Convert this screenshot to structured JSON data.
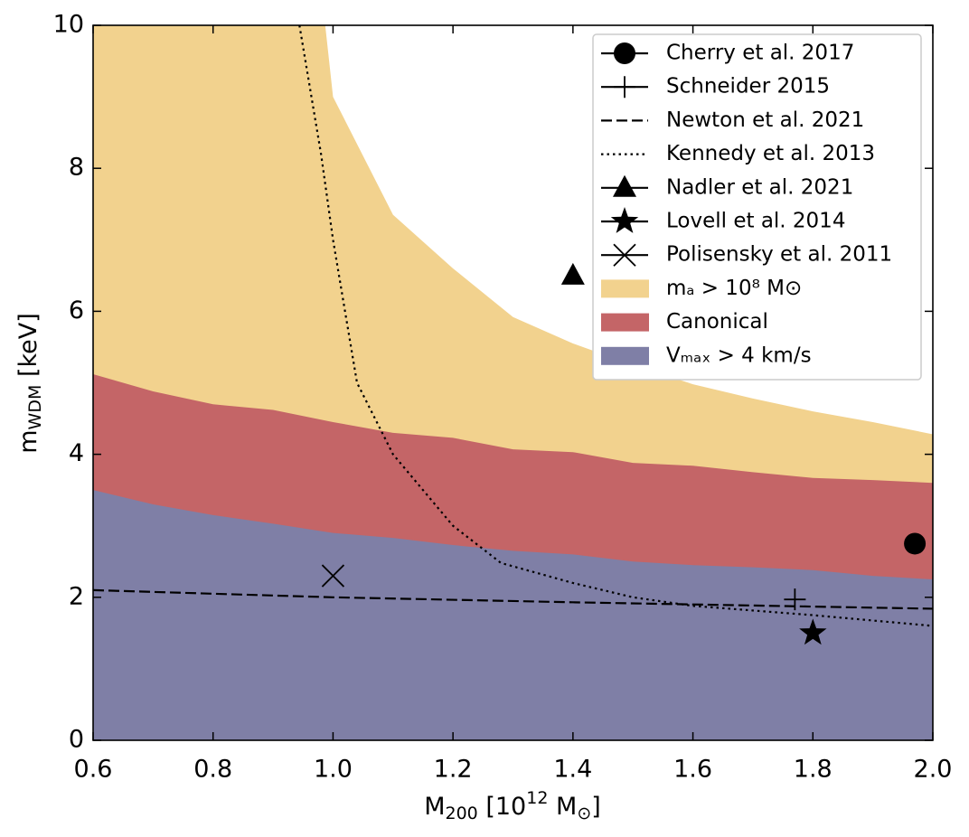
{
  "chart_data": {
    "type": "line",
    "xlabel": [
      "M",
      "200",
      " [10",
      "12",
      " M",
      "⊙",
      "]"
    ],
    "ylabel": [
      "m",
      "WDM",
      " [keV]"
    ],
    "xlim": [
      0.6,
      2.0
    ],
    "ylim": [
      0,
      10
    ],
    "xticks": [
      0.6,
      0.8,
      {
        "value": 1.0,
        "label": "1.0"
      },
      1.2,
      1.4,
      1.6,
      1.8,
      {
        "value": 2.0,
        "label": "2.0"
      }
    ],
    "yticks": [
      0,
      2,
      4,
      6,
      8,
      10
    ],
    "grid": false,
    "legend": "upper right",
    "series": [
      {
        "name": "Cherry et al. 2017",
        "color": "#000000",
        "style": "marker",
        "marker": "circle",
        "x": [
          1.97
        ],
        "values": [
          2.75
        ]
      },
      {
        "name": "Schneider 2015",
        "color": "#000000",
        "style": "marker",
        "marker": "plus",
        "x": [
          1.77
        ],
        "values": [
          1.97
        ]
      },
      {
        "name": "Newton et al. 2021",
        "color": "#000000",
        "style": "dashed",
        "x": [
          0.6,
          1.0,
          1.4,
          1.8,
          2.0
        ],
        "values": [
          2.1,
          2.0,
          1.93,
          1.87,
          1.84
        ]
      },
      {
        "name": "Kennedy et al. 2013",
        "color": "#000000",
        "style": "dotted",
        "x": [
          0.944,
          0.98,
          1.0,
          1.04,
          1.1,
          1.2,
          1.28,
          1.4,
          1.5,
          1.6,
          1.8,
          2.0
        ],
        "values": [
          10,
          8.2,
          7.0,
          5.0,
          4.0,
          3.0,
          2.48,
          2.2,
          2.0,
          1.88,
          1.75,
          1.6
        ]
      },
      {
        "name": "Nadler et al. 2021",
        "color": "#000000",
        "style": "marker",
        "marker": "triangle",
        "x": [
          1.4
        ],
        "values": [
          6.5
        ]
      },
      {
        "name": "Lovell et al. 2014",
        "color": "#000000",
        "style": "marker",
        "marker": "star",
        "x": [
          1.8
        ],
        "values": [
          1.5
        ]
      },
      {
        "name": "Polisensky et al. 2011",
        "color": "#000000",
        "style": "marker",
        "marker": "x",
        "x": [
          1.0
        ],
        "values": [
          2.3
        ]
      },
      {
        "name": "mₐ > 10⁸ M⊙",
        "color": "#f2d28e",
        "style": "fill",
        "x": [
          0.6,
          0.987,
          1.0,
          1.1,
          1.2,
          1.3,
          1.4,
          1.5,
          1.6,
          1.7,
          1.8,
          1.9,
          2.0
        ],
        "values": [
          10,
          10,
          9.0,
          7.35,
          6.6,
          5.92,
          5.55,
          5.25,
          4.98,
          4.78,
          4.6,
          4.45,
          4.28
        ]
      },
      {
        "name": "Canonical",
        "color": "#c46567",
        "style": "fill",
        "x": [
          0.6,
          0.7,
          0.8,
          0.9,
          1.0,
          1.1,
          1.2,
          1.3,
          1.4,
          1.5,
          1.6,
          1.7,
          1.8,
          1.9,
          2.0
        ],
        "values": [
          5.12,
          4.88,
          4.7,
          4.62,
          4.45,
          4.3,
          4.23,
          4.07,
          4.03,
          3.88,
          3.84,
          3.75,
          3.67,
          3.64,
          3.6
        ]
      },
      {
        "name": "Vₘₐₓ > 4 km/s",
        "color": "#7f7fa6",
        "style": "fill",
        "x": [
          0.6,
          0.7,
          0.8,
          0.9,
          1.0,
          1.1,
          1.2,
          1.3,
          1.4,
          1.5,
          1.6,
          1.7,
          1.8,
          1.9,
          2.0
        ],
        "values": [
          3.5,
          3.3,
          3.15,
          3.03,
          2.9,
          2.83,
          2.73,
          2.65,
          2.6,
          2.5,
          2.45,
          2.42,
          2.38,
          2.3,
          2.25
        ]
      }
    ]
  }
}
